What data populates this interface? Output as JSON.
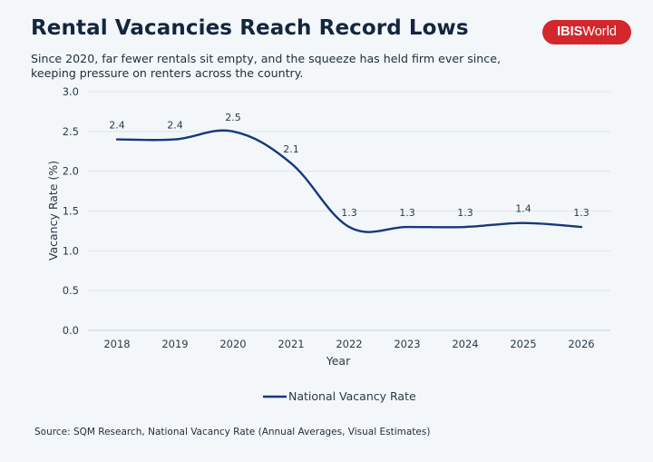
{
  "header": {
    "title": "Rental Vacancies Reach Record Lows",
    "subtitle": "Since 2020, far fewer rentals sit empty, and the squeeze has held firm ever since, keeping pressure on renters across the country.",
    "logo_bold": "IBIS",
    "logo_rest": "World"
  },
  "footer": {
    "source": "Source: SQM Research, National Vacancy Rate (Annual Averages, Visual Estimates)"
  },
  "colors": {
    "line": "#16397a",
    "grid": "#dde5ea",
    "brand": "#d4272c"
  },
  "chart_data": {
    "type": "line",
    "title": "Rental Vacancies Reach Record Lows",
    "xlabel": "Year",
    "ylabel": "Vacancy Rate (%)",
    "ylim": [
      0,
      3
    ],
    "yticks": [
      "0.0",
      "0.5",
      "1.0",
      "1.5",
      "2.0",
      "2.5",
      "3.0"
    ],
    "grid": true,
    "legend_position": "bottom-center",
    "categories": [
      "2018",
      "2019",
      "2020",
      "2021",
      "2022",
      "2023",
      "2024",
      "2025",
      "2026"
    ],
    "series": [
      {
        "name": "National Vacancy Rate",
        "values": [
          2.4,
          2.4,
          2.5,
          2.1,
          1.3,
          1.3,
          1.3,
          1.35,
          1.3
        ],
        "labels": [
          "2.4",
          "2.4",
          "2.5",
          "2.1",
          "1.3",
          "1.3",
          "1.3",
          "1.4",
          "1.3"
        ]
      }
    ]
  }
}
